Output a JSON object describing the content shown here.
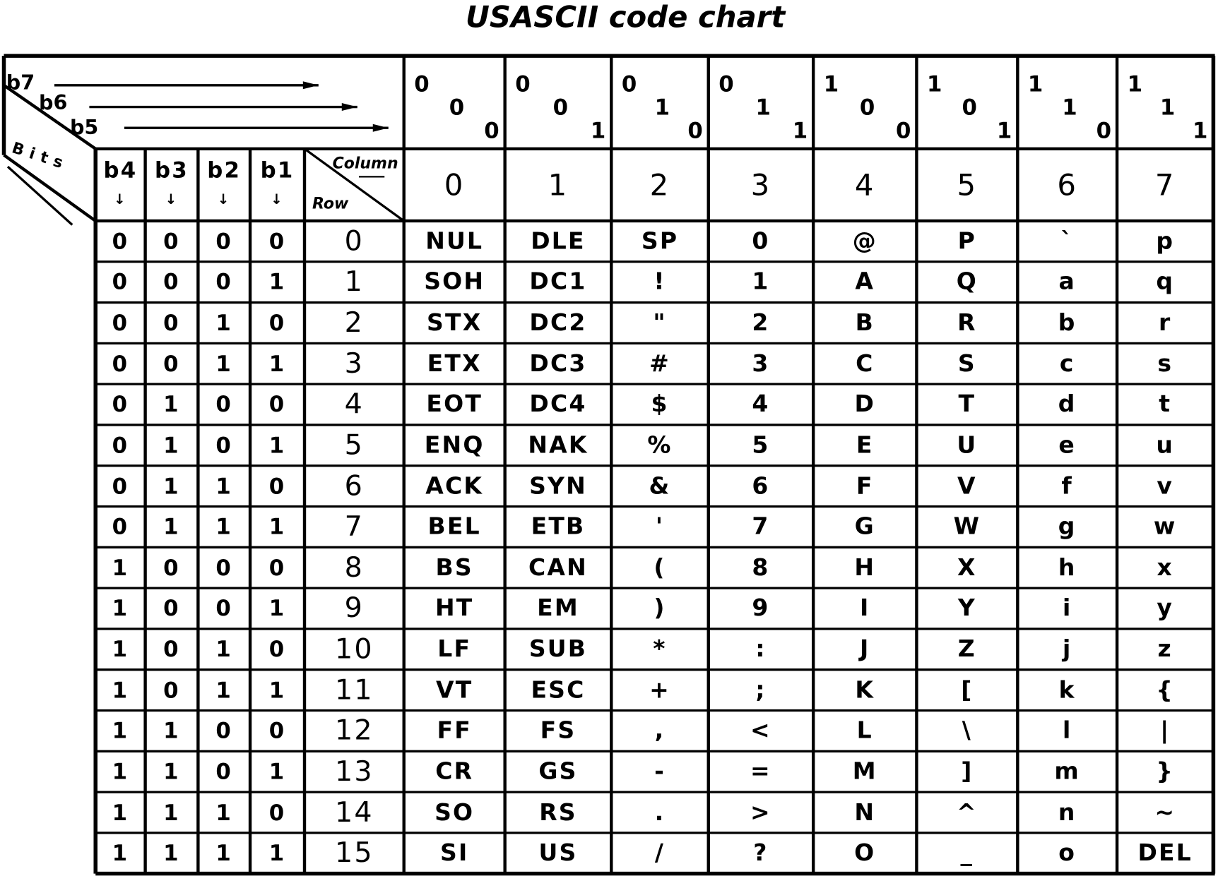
{
  "title": "USASCII code chart",
  "header": {
    "b7b6b5_label": [
      "b7",
      "b6",
      "b5"
    ],
    "bits_label": "Bits",
    "bit_columns": [
      "b4",
      "b3",
      "b2",
      "b1"
    ],
    "column_label": "Column",
    "row_label": "Row"
  },
  "columns": [
    {
      "bits": [
        "0",
        "0",
        "0"
      ],
      "number": "0"
    },
    {
      "bits": [
        "0",
        "0",
        "1"
      ],
      "number": "1"
    },
    {
      "bits": [
        "0",
        "1",
        "0"
      ],
      "number": "2"
    },
    {
      "bits": [
        "0",
        "1",
        "1"
      ],
      "number": "3"
    },
    {
      "bits": [
        "1",
        "0",
        "0"
      ],
      "number": "4"
    },
    {
      "bits": [
        "1",
        "0",
        "1"
      ],
      "number": "5"
    },
    {
      "bits": [
        "1",
        "1",
        "0"
      ],
      "number": "6"
    },
    {
      "bits": [
        "1",
        "1",
        "1"
      ],
      "number": "7"
    }
  ],
  "rows": [
    {
      "bits": [
        "0",
        "0",
        "0",
        "0"
      ],
      "row": "0",
      "chars": [
        "NUL",
        "DLE",
        "SP",
        "0",
        "@",
        "P",
        "`",
        "p"
      ]
    },
    {
      "bits": [
        "0",
        "0",
        "0",
        "1"
      ],
      "row": "1",
      "chars": [
        "SOH",
        "DC1",
        "!",
        "1",
        "A",
        "Q",
        "a",
        "q"
      ]
    },
    {
      "bits": [
        "0",
        "0",
        "1",
        "0"
      ],
      "row": "2",
      "chars": [
        "STX",
        "DC2",
        "\"",
        "2",
        "B",
        "R",
        "b",
        "r"
      ]
    },
    {
      "bits": [
        "0",
        "0",
        "1",
        "1"
      ],
      "row": "3",
      "chars": [
        "ETX",
        "DC3",
        "#",
        "3",
        "C",
        "S",
        "c",
        "s"
      ]
    },
    {
      "bits": [
        "0",
        "1",
        "0",
        "0"
      ],
      "row": "4",
      "chars": [
        "EOT",
        "DC4",
        "$",
        "4",
        "D",
        "T",
        "d",
        "t"
      ]
    },
    {
      "bits": [
        "0",
        "1",
        "0",
        "1"
      ],
      "row": "5",
      "chars": [
        "ENQ",
        "NAK",
        "%",
        "5",
        "E",
        "U",
        "e",
        "u"
      ]
    },
    {
      "bits": [
        "0",
        "1",
        "1",
        "0"
      ],
      "row": "6",
      "chars": [
        "ACK",
        "SYN",
        "&",
        "6",
        "F",
        "V",
        "f",
        "v"
      ]
    },
    {
      "bits": [
        "0",
        "1",
        "1",
        "1"
      ],
      "row": "7",
      "chars": [
        "BEL",
        "ETB",
        "'",
        "7",
        "G",
        "W",
        "g",
        "w"
      ]
    },
    {
      "bits": [
        "1",
        "0",
        "0",
        "0"
      ],
      "row": "8",
      "chars": [
        "BS",
        "CAN",
        "(",
        "8",
        "H",
        "X",
        "h",
        "x"
      ]
    },
    {
      "bits": [
        "1",
        "0",
        "0",
        "1"
      ],
      "row": "9",
      "chars": [
        "HT",
        "EM",
        ")",
        "9",
        "I",
        "Y",
        "i",
        "y"
      ]
    },
    {
      "bits": [
        "1",
        "0",
        "1",
        "0"
      ],
      "row": "10",
      "chars": [
        "LF",
        "SUB",
        "*",
        ":",
        "J",
        "Z",
        "j",
        "z"
      ]
    },
    {
      "bits": [
        "1",
        "0",
        "1",
        "1"
      ],
      "row": "11",
      "chars": [
        "VT",
        "ESC",
        "+",
        ";",
        "K",
        "[",
        "k",
        "{"
      ]
    },
    {
      "bits": [
        "1",
        "1",
        "0",
        "0"
      ],
      "row": "12",
      "chars": [
        "FF",
        "FS",
        ",",
        "<",
        "L",
        "\\",
        "l",
        "|"
      ]
    },
    {
      "bits": [
        "1",
        "1",
        "0",
        "1"
      ],
      "row": "13",
      "chars": [
        "CR",
        "GS",
        "-",
        "=",
        "M",
        "]",
        "m",
        "}"
      ]
    },
    {
      "bits": [
        "1",
        "1",
        "1",
        "0"
      ],
      "row": "14",
      "chars": [
        "SO",
        "RS",
        ".",
        ">",
        "N",
        "^",
        "n",
        "~"
      ]
    },
    {
      "bits": [
        "1",
        "1",
        "1",
        "1"
      ],
      "row": "15",
      "chars": [
        "SI",
        "US",
        "/",
        "?",
        "O",
        "_",
        "o",
        "DEL"
      ]
    }
  ]
}
